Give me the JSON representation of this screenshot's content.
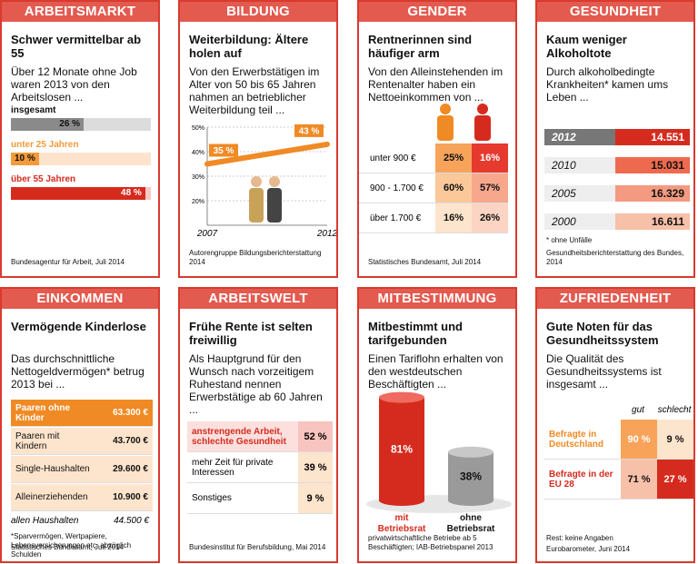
{
  "panels": [
    {
      "header": "ARBEITSMARKT",
      "title": "Schwer vermittelbar ab 55",
      "intro": "Über 12 Monate ohne Job waren 2013 von den Arbeitslosen ...",
      "categories": [
        "insgesamt",
        "unter 25 Jahren",
        "über 55 Jahren"
      ],
      "values": [
        26,
        10,
        48
      ],
      "value_labels": [
        "26 %",
        "10 %",
        "48 %"
      ],
      "colors": [
        "#8a8a8a",
        "#f39a3a",
        "#d52b1e"
      ],
      "source": "Bundesagentur für Arbeit, Juli 2014"
    },
    {
      "header": "BILDUNG",
      "title": "Weiterbildung: Ältere holen auf",
      "intro": "Von den Erwerbstätigen im Alter von 50 bis 65 Jahren nahmen an betrieblicher Weiterbildung teil ...",
      "x": [
        "2007",
        "2012"
      ],
      "values": [
        35,
        43
      ],
      "value_labels": [
        "35 %",
        "43 %"
      ],
      "ylim": [
        10,
        50
      ],
      "yticks": [
        {
          "value": 20,
          "label": "20%"
        },
        {
          "value": 30,
          "label": "30%"
        },
        {
          "value": 40,
          "label": "40%"
        },
        {
          "value": 50,
          "label": "50%"
        }
      ],
      "color": "#f08a24",
      "source": "Autorengruppe Bildungsberichterstattung 2014"
    },
    {
      "header": "GENDER",
      "title": "Rentnerinnen sind häufiger arm",
      "intro": "Von den Alleinstehenden im Rentenalter haben ein Nettoeinkommen von ...",
      "rows": [
        [
          "unter 900 €",
          "25%",
          "16%"
        ],
        [
          "900 - 1.700 €",
          "60%",
          "57%"
        ],
        [
          "über 1.700 €",
          "16%",
          "26%"
        ]
      ],
      "source": "Statistisches Bundesamt, Juli 2014"
    },
    {
      "header": "GESUNDHEIT",
      "title": "Kaum weniger Alkoholtote",
      "intro": "Durch alkoholbedingte Krankheiten* kamen ums Leben ...",
      "rows": [
        [
          "2012",
          "14.551"
        ],
        [
          "2010",
          "15.031"
        ],
        [
          "2005",
          "16.329"
        ],
        [
          "2000",
          "16.611"
        ]
      ],
      "footnote": "* ohne Unfälle",
      "source": "Gesundheitsberichterstattung des Bundes, 2014"
    },
    {
      "header": "EINKOMMEN",
      "title": "Vermögende Kinderlose",
      "intro": "Das durchschnittliche Nettogeldvermögen* betrug 2013 bei ...",
      "rows": [
        [
          "Paaren ohne Kinder",
          "63.300 €"
        ],
        [
          "Paaren mit Kindern",
          "43.700 €"
        ],
        [
          "Single-Haushalten",
          "29.600 €"
        ],
        [
          "Alleinerziehenden",
          "10.900 €"
        ]
      ],
      "total": [
        "allen Haushalten",
        "44.500 €"
      ],
      "footnote": "*Sparvermögen, Wertpapiere, Lebensversicherungen etc. abzüglich Schulden",
      "source": "Statistisches Bundesamt, Juli 2014"
    },
    {
      "header": "ARBEITSWELT",
      "title": "Frühe Rente ist selten freiwillig",
      "intro": "Als Hauptgrund für den Wunsch nach vorzeitigem Ruhestand nennen Erwerbstätige ab 60 Jahren ...",
      "rows": [
        [
          "anstrengende Arbeit, schlechte Gesundheit",
          "52 %"
        ],
        [
          "mehr Zeit für private Interessen",
          "39 %"
        ],
        [
          "Sonstiges",
          "9 %"
        ]
      ],
      "source": "Bundesinstitut für Berufsbildung, Mai 2014"
    },
    {
      "header": "MITBESTIMMUNG",
      "title": "Mitbestimmt und tarifgebunden",
      "intro": "Einen Tariflohn erhalten von den westdeutschen Beschäftigten ...",
      "categories": [
        "mit Betriebsrat",
        "ohne Betriebsrat"
      ],
      "values": [
        81,
        38
      ],
      "value_labels": [
        "81%",
        "38%"
      ],
      "colors": [
        "#d52b1e",
        "#9a9a9a"
      ],
      "source": "privatwirtschaftliche Betriebe ab 5 Beschäftigten; IAB-Betriebspanel 2013"
    },
    {
      "header": "ZUFRIEDENHEIT",
      "title": "Gute Noten für das Gesundheitssystem",
      "intro": "Die Qualität des Gesundheitssystems ist insgesamt ...",
      "columns": [
        "gut",
        "schlecht"
      ],
      "rows": [
        [
          "Befragte in Deutschland",
          "90 %",
          "9 %"
        ],
        [
          "Befragte in der EU 28",
          "71 %",
          "27 %"
        ]
      ],
      "footnote": "Rest: keine Angaben",
      "source": "Eurobarometer, Juni 2014"
    }
  ]
}
